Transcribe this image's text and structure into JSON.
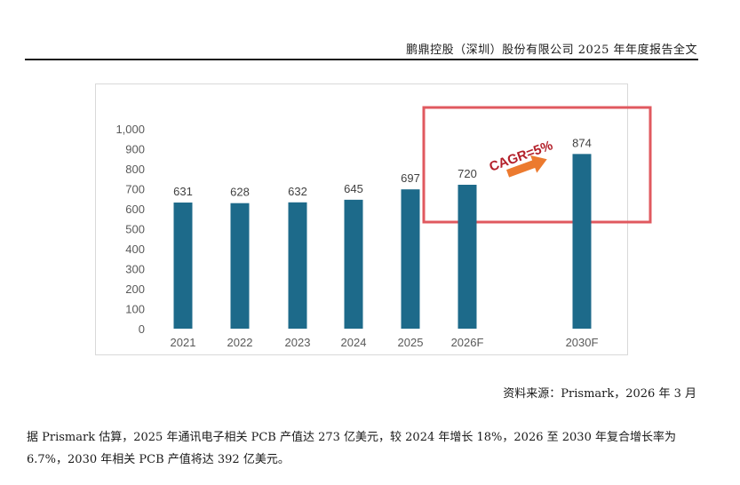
{
  "header": {
    "title": "鹏鼎控股（深圳）股份有限公司 2025 年年度报告全文"
  },
  "chart_data": {
    "type": "bar",
    "title": "",
    "xlabel": "",
    "ylabel": "",
    "categories": [
      "2021",
      "2022",
      "2023",
      "2024",
      "2025",
      "2026F",
      "2030F"
    ],
    "values": [
      631,
      628,
      632,
      645,
      697,
      720,
      874
    ],
    "data_labels": [
      "631",
      "628",
      "632",
      "645",
      "697",
      "720",
      "874"
    ],
    "ylim": [
      0,
      1000
    ],
    "y_ticks": [
      "0",
      "100",
      "200",
      "300",
      "400",
      "500",
      "600",
      "700",
      "800",
      "900",
      "1,000"
    ],
    "bar_color": "#1d6a8a",
    "grid": false,
    "legend": "none",
    "annotation": {
      "text": "CAGR=5%",
      "color": "#b3202a",
      "arrow_color": "#ec7a2f",
      "highlight_color": "#e0595f"
    }
  },
  "source_note": "资料来源：Prismark，2026 年 3 月",
  "paragraph": {
    "line1": "据 Prismark 估算，2025 年通讯电子相关 PCB 产值达 273 亿美元，较 2024 年增长 18%，2026 至 2030 年复合增长率为",
    "line2": "6.7%，2030 年相关 PCB 产值将达 392 亿美元。"
  }
}
